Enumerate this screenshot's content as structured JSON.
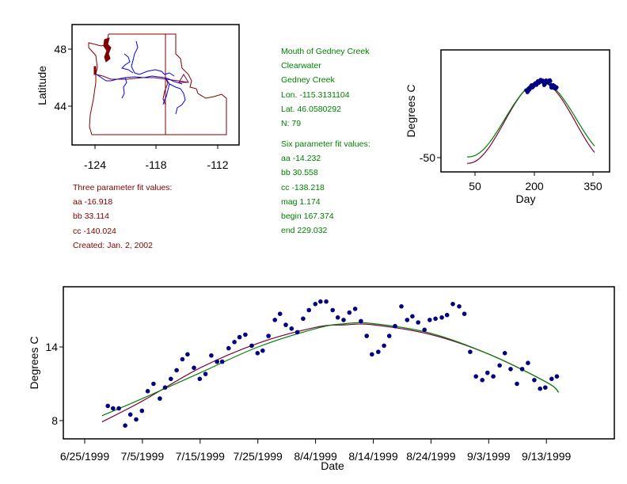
{
  "colors": {
    "border": "#800000",
    "river": "#0000ff",
    "site": "#800040",
    "points": "#000080",
    "three_param_fit": "#800040",
    "six_param_fit": "#008000",
    "three_param_text": "#800000",
    "six_param_text": "#008000"
  },
  "site_info": {
    "lines": [
      "Mouth of Gedney Creek",
      "Clearwater",
      "Gedney Creek",
      "Lon. -115.3131104",
      "Lat. 46.0580292",
      "N: 79"
    ]
  },
  "six_param": {
    "lines": [
      "Six parameter fit values:",
      "aa -14.232",
      "bb 30.558",
      "cc -138.218",
      "mag 1.174",
      "begin 167.374",
      "end 229.032"
    ]
  },
  "three_param": {
    "lines": [
      "Three parameter fit values:",
      "aa -16.918",
      "bb 33.114",
      "cc -140.024",
      "Created:   Jan. 2, 2002"
    ]
  },
  "chart_data": [
    {
      "type": "map",
      "title": "",
      "xlabel": "",
      "ylabel": "Latitude",
      "xticks": [
        "-124",
        "-118",
        "-112"
      ],
      "yticks": [
        "48",
        "44"
      ],
      "xlim": [
        -127.5,
        -109.5
      ],
      "ylim": [
        41.2,
        49.6
      ],
      "site_marker": {
        "shape": "triangle",
        "lon": -115.3131104,
        "lat": 46.0580292
      },
      "layers": [
        "state borders (WA, OR, ID)",
        "rivers (Columbia, Snake, Clearwater)"
      ]
    },
    {
      "type": "line",
      "title": "",
      "xlabel": "Day",
      "ylabel": "Degrees C",
      "xticks": [
        "50",
        "200",
        "350"
      ],
      "yticks": [
        "-50"
      ],
      "xlim": [
        -38,
        400
      ],
      "ylim": [
        -57,
        42
      ],
      "series": [
        {
          "name": "three_param_fit",
          "aa": -16.918,
          "bb": 33.114,
          "cc": -140.024,
          "x_range": [
            30,
            355
          ]
        },
        {
          "name": "six_param_fit",
          "aa": -14.232,
          "bb": 30.558,
          "cc": -138.218,
          "x_range": [
            30,
            355
          ]
        }
      ],
      "points": {
        "name": "observations",
        "x_range": [
          176,
          257
        ],
        "y_range": [
          8,
          17
        ]
      }
    },
    {
      "type": "scatter",
      "title": "",
      "xlabel": "Date",
      "ylabel": "Degrees C",
      "xticks": [
        "6/25/1999",
        "7/5/1999",
        "7/15/1999",
        "7/25/1999",
        "8/4/1999",
        "8/14/1999",
        "8/24/1999",
        "9/3/1999",
        "9/13/1999"
      ],
      "yticks": [
        "8",
        "14"
      ],
      "xlim_days_from_6_25": [
        -3.7,
        91.7
      ],
      "ylim": [
        6.6,
        18.9
      ],
      "x_units": "days since 6/25/1999",
      "points": [
        [
          4.0,
          9.2
        ],
        [
          4.9,
          9.0
        ],
        [
          5.9,
          9.0
        ],
        [
          7.0,
          7.6
        ],
        [
          7.9,
          8.5
        ],
        [
          8.9,
          8.1
        ],
        [
          9.9,
          8.8
        ],
        [
          10.9,
          10.4
        ],
        [
          11.9,
          11.0
        ],
        [
          13.0,
          9.8
        ],
        [
          13.9,
          10.7
        ],
        [
          14.9,
          11.4
        ],
        [
          15.9,
          12.1
        ],
        [
          16.9,
          13.0
        ],
        [
          17.8,
          13.4
        ],
        [
          18.9,
          12.3
        ],
        [
          19.9,
          11.4
        ],
        [
          20.9,
          11.8
        ],
        [
          21.9,
          13.3
        ],
        [
          22.9,
          12.8
        ],
        [
          23.8,
          12.8
        ],
        [
          24.9,
          13.9
        ],
        [
          25.9,
          14.4
        ],
        [
          26.8,
          14.8
        ],
        [
          27.8,
          15.0
        ],
        [
          28.9,
          14.1
        ],
        [
          29.9,
          13.5
        ],
        [
          30.8,
          13.7
        ],
        [
          31.8,
          14.9
        ],
        [
          32.9,
          16.2
        ],
        [
          33.8,
          16.7
        ],
        [
          34.8,
          15.8
        ],
        [
          35.8,
          15.5
        ],
        [
          36.8,
          15.2
        ],
        [
          37.8,
          16.3
        ],
        [
          38.8,
          17.0
        ],
        [
          39.9,
          17.5
        ],
        [
          40.8,
          17.7
        ],
        [
          41.8,
          17.7
        ],
        [
          42.9,
          17.0
        ],
        [
          43.8,
          16.4
        ],
        [
          44.8,
          16.2
        ],
        [
          45.8,
          16.8
        ],
        [
          46.8,
          17.1
        ],
        [
          47.8,
          16.1
        ],
        [
          48.8,
          14.9
        ],
        [
          49.7,
          13.4
        ],
        [
          50.8,
          13.6
        ],
        [
          51.8,
          14.1
        ],
        [
          52.7,
          14.9
        ],
        [
          53.7,
          15.7
        ],
        [
          54.8,
          17.3
        ],
        [
          55.8,
          16.2
        ],
        [
          56.7,
          16.5
        ],
        [
          57.7,
          16.0
        ],
        [
          58.8,
          15.4
        ],
        [
          59.7,
          16.2
        ],
        [
          60.7,
          16.3
        ],
        [
          61.8,
          16.4
        ],
        [
          62.7,
          16.6
        ],
        [
          63.7,
          17.5
        ],
        [
          64.8,
          17.3
        ],
        [
          65.7,
          16.7
        ],
        [
          66.7,
          13.6
        ],
        [
          67.7,
          11.6
        ],
        [
          68.8,
          11.3
        ],
        [
          69.7,
          11.9
        ],
        [
          70.7,
          11.6
        ],
        [
          71.8,
          12.5
        ],
        [
          72.7,
          13.5
        ],
        [
          73.7,
          12.2
        ],
        [
          74.8,
          11.0
        ],
        [
          75.7,
          12.2
        ],
        [
          76.7,
          12.7
        ],
        [
          77.8,
          11.3
        ],
        [
          78.8,
          10.6
        ],
        [
          79.7,
          10.7
        ],
        [
          80.8,
          11.4
        ],
        [
          81.7,
          11.6
        ]
      ],
      "series": [
        {
          "name": "three_param_fit",
          "x": [
            3,
            10,
            20,
            30,
            40,
            45,
            50,
            60,
            70,
            80,
            82
          ],
          "y": [
            7.9,
            9.6,
            12.3,
            14.3,
            15.6,
            15.8,
            15.8,
            15.0,
            13.4,
            11.1,
            10.3
          ]
        },
        {
          "name": "six_param_fit",
          "x": [
            3,
            10,
            20,
            30,
            40,
            45,
            50,
            60,
            70,
            80,
            82
          ],
          "y": [
            8.4,
            9.8,
            11.9,
            14.0,
            15.5,
            15.9,
            15.9,
            15.1,
            13.4,
            11.1,
            10.3
          ]
        }
      ]
    }
  ]
}
